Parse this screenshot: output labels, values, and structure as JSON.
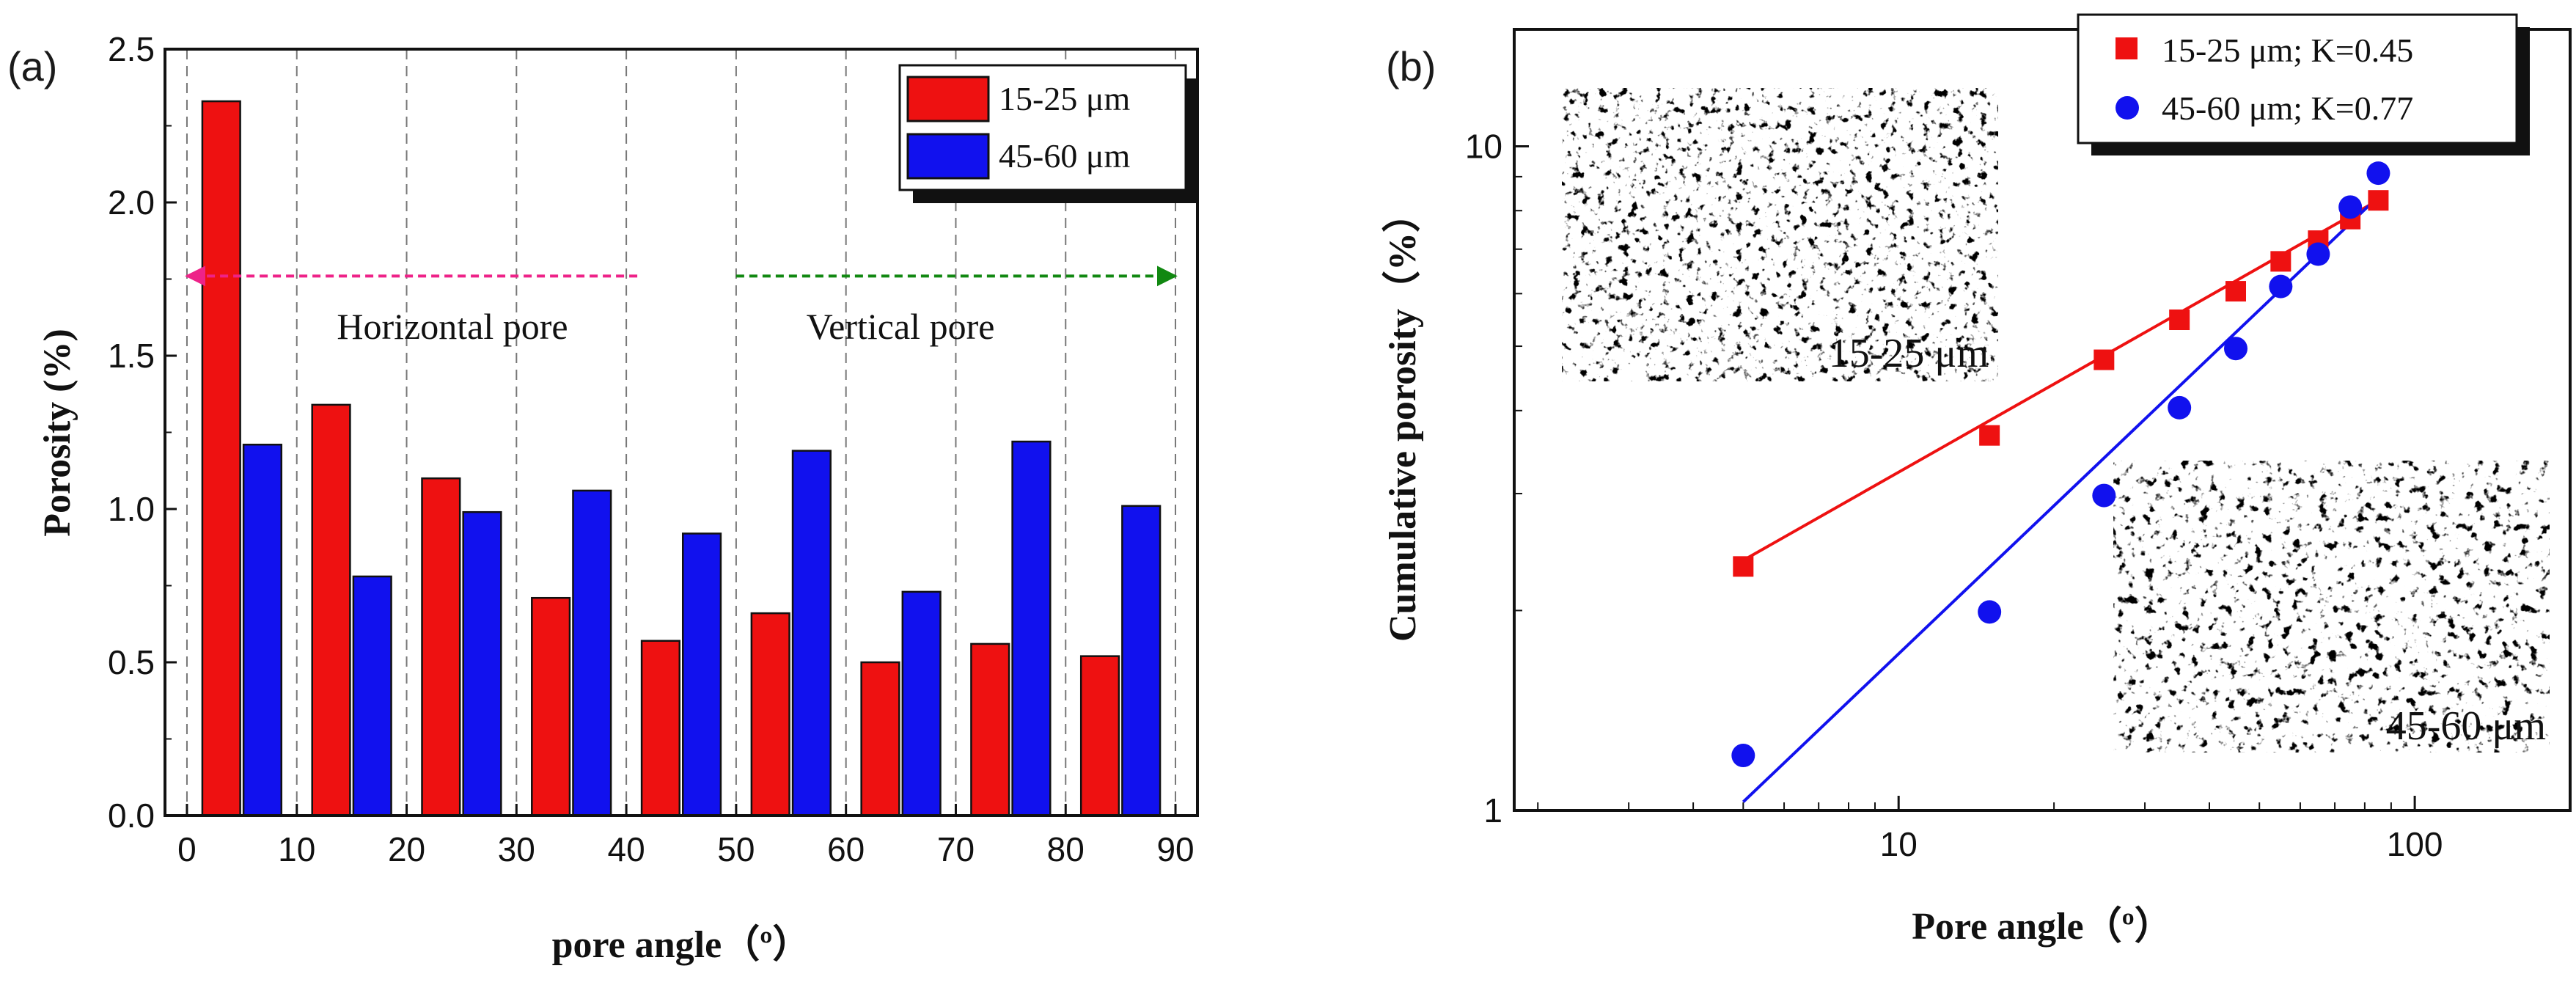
{
  "colors": {
    "red": "#ee1111",
    "blue": "#1111ee",
    "magenta": "#ee2288",
    "green": "#118811",
    "axis": "#111111"
  },
  "chart_data": [
    {
      "type": "bar",
      "panel_label": "(a)",
      "title": "",
      "xlabel": "pore angle（º）",
      "ylabel": "Porosity (%)",
      "xlim": [
        -2,
        92
      ],
      "ylim": [
        0,
        2.5
      ],
      "x_ticks": [
        "0",
        "10",
        "20",
        "30",
        "40",
        "50",
        "60",
        "70",
        "80",
        "90"
      ],
      "y_ticks": [
        "0.0",
        "0.5",
        "1.0",
        "1.5",
        "2.0",
        "2.5"
      ],
      "bin_centers": [
        5,
        15,
        25,
        35,
        45,
        55,
        65,
        75,
        85
      ],
      "series": [
        {
          "name": "15-25 μm",
          "color": "#ee1111",
          "values": [
            2.33,
            1.34,
            1.1,
            0.71,
            0.57,
            0.66,
            0.5,
            0.56,
            0.52
          ]
        },
        {
          "name": "45-60 μm",
          "color": "#1111ee",
          "values": [
            1.21,
            0.78,
            0.99,
            1.06,
            0.92,
            1.19,
            0.73,
            1.22,
            1.01
          ]
        }
      ],
      "legend_position": "top-right",
      "vertical_gridlines": "dashed",
      "annotations": [
        {
          "text": "Horizontal pore",
          "arrow_direction": "left",
          "arrow_from": 41,
          "arrow_to": 0,
          "arrow_y": 1.76,
          "color": "#ee2288"
        },
        {
          "text": "Vertical pore",
          "arrow_direction": "right",
          "arrow_from": 50,
          "arrow_to": 90,
          "arrow_y": 1.76,
          "color": "#118811"
        }
      ]
    },
    {
      "type": "scatter",
      "scale": "log-log",
      "panel_label": "(b)",
      "title": "",
      "xlabel": "Pore angle（º）",
      "ylabel": "Cumulative porosity（%）",
      "xlim": [
        1.8,
        200
      ],
      "ylim": [
        1,
        15
      ],
      "x_ticks": [
        "10",
        "100"
      ],
      "y_ticks": [
        "1",
        "10"
      ],
      "legend_position": "top-right",
      "series": [
        {
          "name": "15-25 μm; K=0.45",
          "marker": "square",
          "color": "#ee1111",
          "x": [
            5,
            15,
            25,
            35,
            45,
            55,
            65,
            75,
            85
          ],
          "y": [
            2.33,
            3.67,
            4.77,
            5.48,
            6.05,
            6.71,
            7.21,
            7.77,
            8.29
          ],
          "fit": {
            "x": [
              5,
              85
            ],
            "y": [
              2.38,
              8.3
            ]
          }
        },
        {
          "name": "45-60 μm; K=0.77",
          "marker": "circle",
          "color": "#1111ee",
          "x": [
            5,
            15,
            25,
            35,
            45,
            55,
            65,
            75,
            85
          ],
          "y": [
            1.21,
            1.99,
            2.98,
            4.04,
            4.96,
            6.15,
            6.88,
            8.1,
            9.11
          ],
          "fit": {
            "x": [
              5,
              85
            ],
            "y": [
              1.03,
              8.4
            ]
          }
        }
      ],
      "inset_labels": [
        {
          "text": "15-25 μm",
          "color": "#ee1111"
        },
        {
          "text": "45-60 μm",
          "color": "#1111ee"
        }
      ]
    }
  ]
}
